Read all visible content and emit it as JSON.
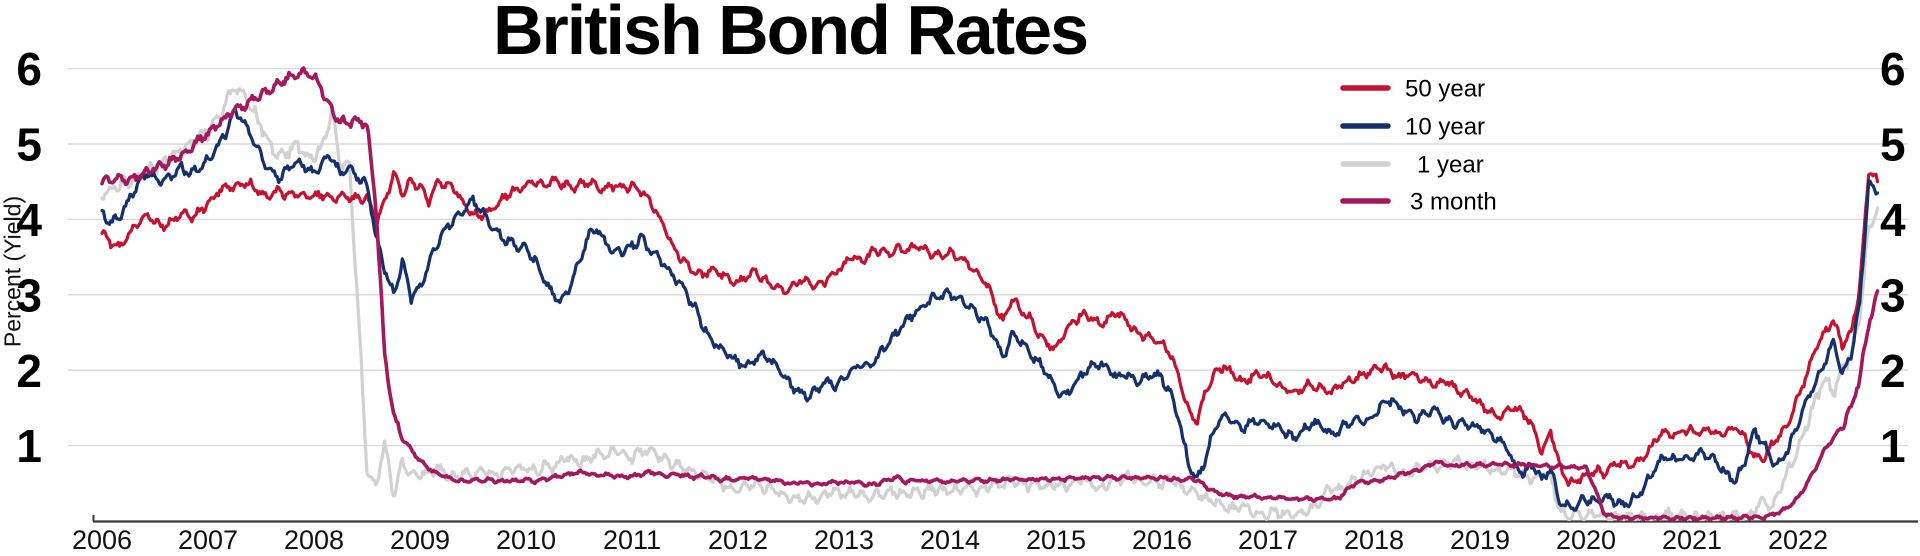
{
  "title": "British Bond Rates",
  "y_axis": {
    "label": "Percent (Yield)",
    "ticks": [
      1,
      2,
      3,
      4,
      5,
      6
    ]
  },
  "x_axis": {
    "ticks": [
      2006,
      2007,
      2008,
      2009,
      2010,
      2011,
      2012,
      2013,
      2014,
      2015,
      2016,
      2017,
      2018,
      2019,
      2020,
      2021,
      2022
    ]
  },
  "legend": {
    "position": "top-right",
    "entries": [
      "50 year",
      "10 year",
      "1 year",
      "3 month"
    ]
  },
  "colors": {
    "fifty_year": "#C41230",
    "ten_year": "#15306D",
    "one_year": "#D1D1D1",
    "three_month": "#A3195B",
    "gridline": "#DADADA",
    "axis": "#3A3A3A"
  },
  "chart_data": {
    "type": "line",
    "title": "British Bond Rates",
    "xlabel": "",
    "ylabel": "Percent (Yield)",
    "x_start": 2006.0,
    "x_step": 0.08333,
    "xlim": [
      2006,
      2023
    ],
    "ylim": [
      0,
      6.3
    ],
    "grid": "horizontal",
    "legend_position": "top-right",
    "series": [
      {
        "name": "50 year",
        "color": "#C41230",
        "values": [
          3.85,
          3.68,
          3.62,
          3.78,
          3.95,
          4.05,
          3.97,
          3.9,
          3.98,
          4.1,
          4.02,
          4.1,
          4.2,
          4.35,
          4.45,
          4.4,
          4.5,
          4.45,
          4.35,
          4.3,
          4.38,
          4.3,
          4.33,
          4.28,
          4.3,
          4.33,
          4.28,
          4.32,
          4.3,
          4.27,
          4.3,
          3.95,
          4.25,
          4.6,
          4.35,
          4.5,
          4.45,
          4.25,
          4.5,
          4.45,
          4.4,
          4.2,
          4.08,
          4.05,
          4.12,
          4.22,
          4.35,
          4.4,
          4.45,
          4.5,
          4.45,
          4.52,
          4.48,
          4.42,
          4.45,
          4.5,
          4.45,
          4.4,
          4.45,
          4.42,
          4.45,
          4.38,
          4.25,
          4.05,
          3.8,
          3.55,
          3.45,
          3.3,
          3.25,
          3.35,
          3.28,
          3.2,
          3.15,
          3.25,
          3.3,
          3.2,
          3.1,
          3.05,
          3.1,
          3.2,
          3.15,
          3.1,
          3.2,
          3.3,
          3.4,
          3.5,
          3.45,
          3.55,
          3.6,
          3.55,
          3.62,
          3.58,
          3.65,
          3.6,
          3.55,
          3.5,
          3.55,
          3.5,
          3.42,
          3.3,
          3.2,
          2.9,
          2.65,
          2.95,
          2.8,
          2.7,
          2.5,
          2.35,
          2.3,
          2.5,
          2.65,
          2.75,
          2.7,
          2.6,
          2.7,
          2.75,
          2.65,
          2.5,
          2.45,
          2.4,
          2.35,
          2.2,
          1.9,
          1.45,
          1.3,
          1.75,
          1.95,
          2.05,
          1.95,
          1.85,
          1.9,
          1.95,
          1.9,
          1.8,
          1.75,
          1.7,
          1.78,
          1.82,
          1.75,
          1.7,
          1.78,
          1.85,
          1.9,
          1.95,
          2.0,
          2.05,
          1.95,
          1.9,
          1.98,
          1.92,
          1.85,
          1.8,
          1.88,
          1.78,
          1.7,
          1.65,
          1.55,
          1.45,
          1.38,
          1.45,
          1.5,
          1.42,
          1.25,
          0.92,
          1.2,
          0.72,
          0.5,
          0.55,
          0.6,
          0.68,
          0.62,
          0.72,
          0.78,
          0.72,
          0.8,
          0.9,
          1.1,
          1.2,
          1.15,
          1.2,
          1.2,
          1.18,
          1.22,
          1.15,
          1.2,
          1.25,
          1.1,
          0.85,
          0.8,
          1.0,
          1.15,
          1.3,
          1.65,
          1.95,
          2.3,
          2.5,
          2.65,
          2.35,
          2.5,
          3.1,
          4.66,
          4.5
        ]
      },
      {
        "name": "10 year",
        "color": "#15306D",
        "values": [
          4.1,
          3.95,
          4.05,
          4.25,
          4.45,
          4.6,
          4.55,
          4.5,
          4.6,
          4.68,
          4.6,
          4.7,
          4.8,
          4.95,
          5.15,
          5.45,
          5.3,
          5.1,
          4.85,
          4.65,
          4.55,
          4.65,
          4.75,
          4.7,
          4.6,
          4.75,
          4.85,
          4.6,
          4.7,
          4.55,
          4.45,
          3.8,
          3.35,
          3.0,
          3.45,
          2.95,
          3.1,
          3.4,
          3.7,
          3.9,
          4.0,
          4.15,
          4.25,
          4.1,
          3.95,
          3.8,
          3.7,
          3.65,
          3.6,
          3.45,
          3.25,
          3.0,
          2.9,
          3.1,
          3.45,
          3.75,
          3.9,
          3.7,
          3.55,
          3.6,
          3.65,
          3.75,
          3.6,
          3.5,
          3.35,
          3.2,
          3.05,
          2.85,
          2.6,
          2.4,
          2.3,
          2.2,
          2.1,
          2.05,
          2.15,
          2.2,
          2.1,
          1.95,
          1.8,
          1.7,
          1.65,
          1.75,
          1.85,
          1.8,
          1.9,
          2.0,
          2.1,
          2.05,
          2.2,
          2.35,
          2.5,
          2.65,
          2.75,
          2.85,
          2.95,
          3.0,
          3.0,
          2.95,
          2.85,
          2.75,
          2.65,
          2.45,
          2.15,
          2.5,
          2.4,
          2.25,
          2.1,
          1.95,
          1.75,
          1.65,
          1.8,
          1.95,
          2.05,
          2.1,
          2.0,
          1.9,
          1.95,
          1.85,
          1.9,
          1.95,
          1.9,
          1.7,
          1.3,
          0.75,
          0.55,
          0.85,
          1.25,
          1.4,
          1.3,
          1.2,
          1.3,
          1.35,
          1.3,
          1.25,
          1.15,
          1.1,
          1.2,
          1.3,
          1.25,
          1.15,
          1.2,
          1.3,
          1.35,
          1.3,
          1.4,
          1.55,
          1.62,
          1.5,
          1.42,
          1.35,
          1.42,
          1.48,
          1.35,
          1.28,
          1.32,
          1.25,
          1.25,
          1.18,
          1.08,
          0.98,
          0.72,
          0.62,
          0.75,
          0.55,
          0.7,
          0.25,
          0.18,
          0.22,
          0.3,
          0.25,
          0.32,
          0.28,
          0.22,
          0.25,
          0.35,
          0.55,
          0.75,
          0.85,
          0.8,
          0.85,
          0.85,
          0.9,
          0.85,
          0.75,
          0.6,
          0.55,
          0.8,
          1.2,
          1.05,
          0.8,
          0.75,
          1.0,
          1.3,
          1.6,
          1.85,
          2.1,
          2.4,
          1.95,
          2.2,
          2.9,
          4.5,
          4.35
        ]
      },
      {
        "name": "1 year",
        "color": "#D1D1D1",
        "values": [
          4.35,
          4.4,
          4.45,
          4.5,
          4.55,
          4.65,
          4.7,
          4.75,
          4.85,
          4.95,
          5.0,
          5.1,
          5.15,
          5.35,
          5.55,
          5.75,
          5.65,
          5.45,
          5.25,
          5.0,
          4.85,
          4.9,
          5.0,
          4.85,
          4.8,
          5.0,
          5.45,
          4.7,
          4.75,
          2.8,
          0.68,
          0.45,
          1.05,
          0.35,
          0.8,
          0.6,
          0.65,
          0.6,
          0.7,
          0.62,
          0.55,
          0.65,
          0.6,
          0.7,
          0.65,
          0.6,
          0.7,
          0.68,
          0.72,
          0.65,
          0.75,
          0.7,
          0.8,
          0.85,
          0.75,
          0.82,
          0.9,
          0.85,
          0.95,
          0.88,
          0.85,
          0.92,
          0.95,
          0.85,
          0.8,
          0.75,
          0.7,
          0.65,
          0.6,
          0.55,
          0.5,
          0.45,
          0.4,
          0.45,
          0.5,
          0.45,
          0.4,
          0.35,
          0.3,
          0.28,
          0.32,
          0.3,
          0.35,
          0.4,
          0.35,
          0.4,
          0.35,
          0.3,
          0.35,
          0.4,
          0.38,
          0.35,
          0.4,
          0.38,
          0.42,
          0.4,
          0.38,
          0.42,
          0.45,
          0.4,
          0.45,
          0.5,
          0.48,
          0.55,
          0.5,
          0.45,
          0.5,
          0.45,
          0.5,
          0.45,
          0.5,
          0.55,
          0.5,
          0.45,
          0.5,
          0.55,
          0.6,
          0.55,
          0.5,
          0.55,
          0.5,
          0.55,
          0.45,
          0.4,
          0.35,
          0.3,
          0.25,
          0.2,
          0.15,
          0.2,
          0.15,
          0.1,
          0.1,
          0.12,
          0.08,
          0.1,
          0.12,
          0.15,
          0.3,
          0.45,
          0.4,
          0.5,
          0.55,
          0.6,
          0.65,
          0.75,
          0.7,
          0.6,
          0.65,
          0.7,
          0.75,
          0.7,
          0.75,
          0.8,
          0.75,
          0.7,
          0.75,
          0.7,
          0.65,
          0.7,
          0.65,
          0.6,
          0.55,
          0.65,
          0.6,
          0.15,
          0.05,
          0.1,
          0.05,
          0.1,
          0.05,
          0.03,
          0.06,
          0.03,
          0.05,
          0.02,
          0.05,
          0.1,
          0.05,
          0.08,
          0.05,
          0.02,
          0.05,
          0.03,
          0.05,
          0.08,
          0.05,
          0.12,
          0.3,
          0.15,
          0.45,
          0.7,
          0.95,
          1.3,
          1.6,
          1.9,
          1.7,
          2.0,
          2.2,
          2.7,
          3.9,
          4.15
        ]
      },
      {
        "name": "3 month",
        "color": "#A3195B",
        "values": [
          4.5,
          4.52,
          4.55,
          4.5,
          4.58,
          4.62,
          4.68,
          4.72,
          4.78,
          4.85,
          4.95,
          5.05,
          5.15,
          5.25,
          5.35,
          5.45,
          5.5,
          5.58,
          5.65,
          5.72,
          5.8,
          5.88,
          5.92,
          5.95,
          5.9,
          5.7,
          5.45,
          5.3,
          5.28,
          5.32,
          5.25,
          4.2,
          2.2,
          1.4,
          1.1,
          0.95,
          0.8,
          0.7,
          0.62,
          0.58,
          0.55,
          0.52,
          0.55,
          0.53,
          0.55,
          0.52,
          0.54,
          0.53,
          0.55,
          0.52,
          0.55,
          0.58,
          0.6,
          0.62,
          0.65,
          0.63,
          0.6,
          0.62,
          0.6,
          0.58,
          0.6,
          0.62,
          0.65,
          0.63,
          0.6,
          0.62,
          0.6,
          0.58,
          0.6,
          0.58,
          0.55,
          0.56,
          0.55,
          0.58,
          0.56,
          0.54,
          0.55,
          0.52,
          0.5,
          0.52,
          0.5,
          0.48,
          0.5,
          0.52,
          0.5,
          0.52,
          0.5,
          0.48,
          0.5,
          0.55,
          0.58,
          0.52,
          0.55,
          0.52,
          0.54,
          0.52,
          0.52,
          0.54,
          0.52,
          0.55,
          0.53,
          0.55,
          0.54,
          0.56,
          0.55,
          0.54,
          0.56,
          0.55,
          0.56,
          0.55,
          0.57,
          0.56,
          0.58,
          0.57,
          0.58,
          0.57,
          0.58,
          0.57,
          0.58,
          0.57,
          0.57,
          0.56,
          0.55,
          0.56,
          0.55,
          0.45,
          0.38,
          0.35,
          0.33,
          0.32,
          0.33,
          0.32,
          0.3,
          0.32,
          0.3,
          0.29,
          0.3,
          0.28,
          0.3,
          0.29,
          0.3,
          0.42,
          0.5,
          0.52,
          0.52,
          0.55,
          0.58,
          0.62,
          0.65,
          0.68,
          0.72,
          0.78,
          0.75,
          0.73,
          0.75,
          0.74,
          0.75,
          0.74,
          0.76,
          0.75,
          0.74,
          0.75,
          0.73,
          0.74,
          0.72,
          0.73,
          0.71,
          0.72,
          0.7,
          0.45,
          0.1,
          0.06,
          0.05,
          0.04,
          0.05,
          0.04,
          0.05,
          0.04,
          0.03,
          0.04,
          0.03,
          0.04,
          0.03,
          0.04,
          0.05,
          0.04,
          0.05,
          0.06,
          0.05,
          0.08,
          0.12,
          0.2,
          0.3,
          0.5,
          0.7,
          0.95,
          1.1,
          1.25,
          1.5,
          1.9,
          2.6,
          3.05
        ]
      }
    ]
  }
}
